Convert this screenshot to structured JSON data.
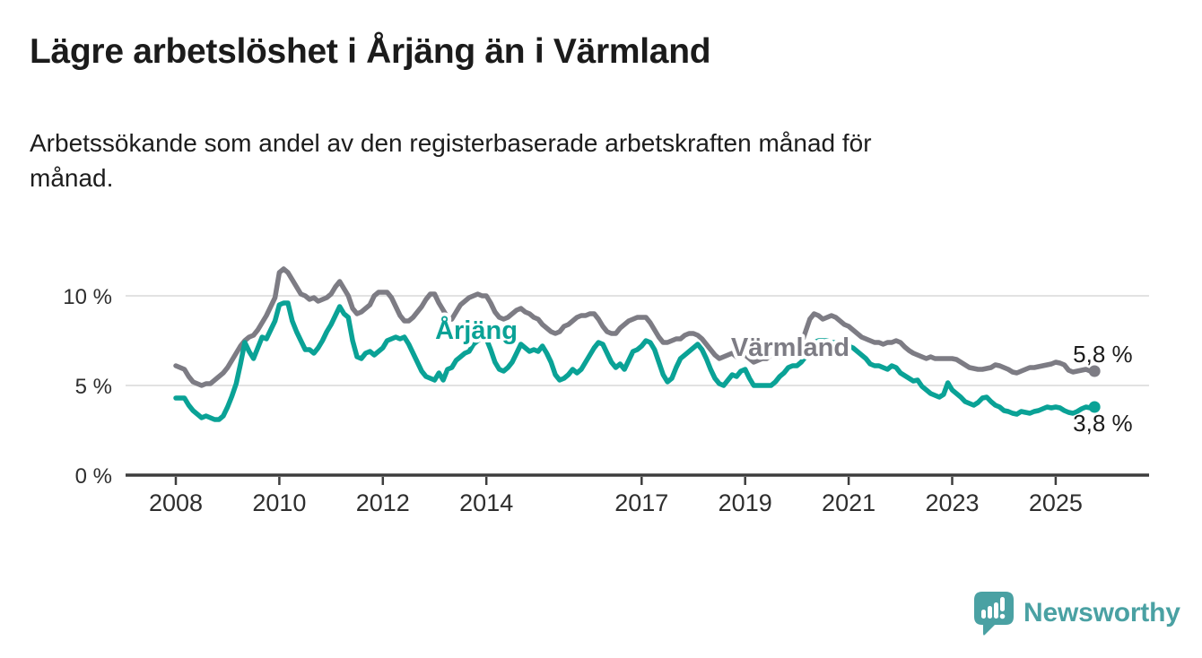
{
  "header": {
    "title": "Lägre arbetslöshet i Årjäng än i Värmland",
    "subtitle_lines": [
      "Arbetssökande som andel av den registerbaserade arbetskraften månad för",
      "månad."
    ]
  },
  "branding": {
    "wordmark": "Newsworthy",
    "logo_icon": "bar-chart-speech-bubble-icon",
    "brand_color": "#4aa1a3"
  },
  "colors": {
    "background": "#ffffff",
    "text": "#1b1b1b",
    "axis": "#3d3d3d",
    "gridline": "#d9d9d9",
    "arjang": "#0aa296",
    "varmland": "#7d7c84"
  },
  "chart_data": {
    "type": "line",
    "title": "Lägre arbetslöshet i Årjäng än i Värmland",
    "subtitle": "Arbetssökande som andel av den registerbaserade arbetskraften månad för månad.",
    "frequency": "monthly",
    "x_start": "2008-01",
    "x_end": "2025-10",
    "grid": "horizontal",
    "legend_position": "inline-labels",
    "y_axis": {
      "unit": "%",
      "range": [
        0,
        12
      ],
      "ticks": [
        {
          "value": 10,
          "label": "10 %"
        },
        {
          "value": 5,
          "label": "5 %"
        },
        {
          "value": 0,
          "label": "0 %"
        }
      ]
    },
    "x_axis": {
      "ticks": [
        2008,
        2010,
        2012,
        2014,
        2017,
        2019,
        2021,
        2023,
        2025
      ]
    },
    "series": [
      {
        "id": "varmland",
        "name": "Värmland",
        "color": "#7d7c84",
        "end_label": "5,8 %",
        "end_label_position": "above",
        "values": [
          6.1,
          6.0,
          5.9,
          5.5,
          5.2,
          5.1,
          5.0,
          5.1,
          5.1,
          5.3,
          5.5,
          5.7,
          6.0,
          6.4,
          6.8,
          7.2,
          7.5,
          7.7,
          7.8,
          8.1,
          8.5,
          8.9,
          9.4,
          9.9,
          11.3,
          11.5,
          11.3,
          10.9,
          10.5,
          10.1,
          10.0,
          9.8,
          9.9,
          9.7,
          9.8,
          9.9,
          10.1,
          10.5,
          10.8,
          10.4,
          10.0,
          9.3,
          9.0,
          9.1,
          9.3,
          9.5,
          10.0,
          10.2,
          10.2,
          10.2,
          9.9,
          9.4,
          8.9,
          8.6,
          8.6,
          8.8,
          9.1,
          9.4,
          9.8,
          10.1,
          10.1,
          9.6,
          9.2,
          8.8,
          8.7,
          9.1,
          9.5,
          9.7,
          9.9,
          10.0,
          10.1,
          10.0,
          10.0,
          9.6,
          9.1,
          8.8,
          8.7,
          8.8,
          9.0,
          9.2,
          9.3,
          9.1,
          9.0,
          8.8,
          8.7,
          8.4,
          8.2,
          8.0,
          7.9,
          8.0,
          8.3,
          8.4,
          8.6,
          8.8,
          8.9,
          8.9,
          9.0,
          9.0,
          8.7,
          8.3,
          8.0,
          7.9,
          7.9,
          8.2,
          8.4,
          8.6,
          8.7,
          8.8,
          8.8,
          8.8,
          8.5,
          8.1,
          7.7,
          7.4,
          7.4,
          7.5,
          7.6,
          7.6,
          7.8,
          7.9,
          7.9,
          7.8,
          7.6,
          7.3,
          7.0,
          6.7,
          6.5,
          6.6,
          6.7,
          6.8,
          6.6,
          6.7,
          6.7,
          6.5,
          6.3,
          6.4,
          6.5,
          6.5,
          6.7,
          6.7,
          6.6,
          6.7,
          6.8,
          6.8,
          6.9,
          7.3,
          8.0,
          8.7,
          9.0,
          8.9,
          8.7,
          8.8,
          8.9,
          8.8,
          8.6,
          8.4,
          8.3,
          8.1,
          7.9,
          7.7,
          7.6,
          7.5,
          7.4,
          7.4,
          7.3,
          7.4,
          7.4,
          7.5,
          7.4,
          7.15,
          6.95,
          6.8,
          6.7,
          6.6,
          6.5,
          6.6,
          6.5,
          6.5,
          6.5,
          6.5,
          6.5,
          6.45,
          6.3,
          6.15,
          6.0,
          5.95,
          5.9,
          5.9,
          5.95,
          6.0,
          6.15,
          6.1,
          6.0,
          5.9,
          5.75,
          5.7,
          5.8,
          5.9,
          6.0,
          6.0,
          6.05,
          6.1,
          6.15,
          6.2,
          6.3,
          6.25,
          6.15,
          5.85,
          5.75,
          5.8,
          5.85,
          5.9,
          5.8,
          5.8
        ]
      },
      {
        "id": "arjang",
        "name": "Årjäng",
        "color": "#0aa296",
        "end_label": "3,8 %",
        "end_label_position": "below",
        "values": [
          4.3,
          4.3,
          4.3,
          3.9,
          3.6,
          3.4,
          3.2,
          3.3,
          3.2,
          3.1,
          3.1,
          3.3,
          3.8,
          4.4,
          5.1,
          6.2,
          7.4,
          6.9,
          6.5,
          7.1,
          7.7,
          7.6,
          8.1,
          8.6,
          9.5,
          9.6,
          9.6,
          8.6,
          8.0,
          7.5,
          7.0,
          7.0,
          6.8,
          7.1,
          7.5,
          8.0,
          8.4,
          8.9,
          9.4,
          9.0,
          8.8,
          7.5,
          6.6,
          6.5,
          6.8,
          6.9,
          6.7,
          6.9,
          7.1,
          7.5,
          7.6,
          7.7,
          7.6,
          7.7,
          7.3,
          6.8,
          6.3,
          5.8,
          5.5,
          5.4,
          5.3,
          5.7,
          5.3,
          5.9,
          6.0,
          6.4,
          6.6,
          6.8,
          6.9,
          7.3,
          7.5,
          7.6,
          7.6,
          7.0,
          6.3,
          5.9,
          5.8,
          6.0,
          6.3,
          6.8,
          7.3,
          7.1,
          6.9,
          7.0,
          6.9,
          7.2,
          6.8,
          6.3,
          5.6,
          5.3,
          5.4,
          5.6,
          5.9,
          5.7,
          5.9,
          6.3,
          6.7,
          7.1,
          7.4,
          7.3,
          6.8,
          6.3,
          6.0,
          6.2,
          5.9,
          6.4,
          6.9,
          7.0,
          7.2,
          7.5,
          7.4,
          7.0,
          6.3,
          5.6,
          5.2,
          5.4,
          6.0,
          6.5,
          6.7,
          6.9,
          7.1,
          7.3,
          7.0,
          6.5,
          5.9,
          5.4,
          5.1,
          5.0,
          5.3,
          5.6,
          5.5,
          5.8,
          5.9,
          5.4,
          5.0,
          5.0,
          5.0,
          5.0,
          5.0,
          5.2,
          5.5,
          5.7,
          6.0,
          6.1,
          6.1,
          6.3,
          6.6,
          7.1,
          7.4,
          7.5,
          7.5,
          7.5,
          7.4,
          7.4,
          7.4,
          7.3,
          7.2,
          7.1,
          6.9,
          6.7,
          6.5,
          6.2,
          6.1,
          6.1,
          6.0,
          5.9,
          6.1,
          6.0,
          5.7,
          5.55,
          5.4,
          5.25,
          5.3,
          4.95,
          4.75,
          4.55,
          4.45,
          4.35,
          4.5,
          5.15,
          4.75,
          4.55,
          4.35,
          4.1,
          4.0,
          3.9,
          4.05,
          4.3,
          4.35,
          4.1,
          3.9,
          3.8,
          3.6,
          3.55,
          3.45,
          3.4,
          3.55,
          3.5,
          3.45,
          3.55,
          3.6,
          3.7,
          3.8,
          3.75,
          3.8,
          3.75,
          3.6,
          3.5,
          3.45,
          3.55,
          3.7,
          3.8,
          3.75,
          3.8
        ]
      }
    ]
  }
}
